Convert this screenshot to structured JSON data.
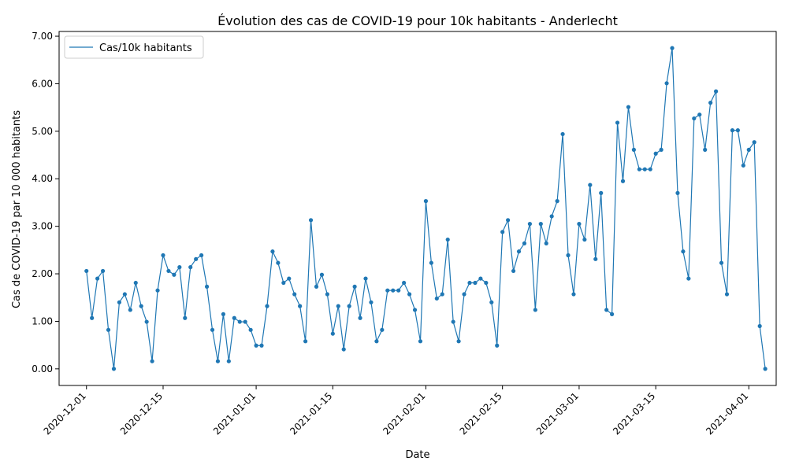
{
  "chart_data": {
    "type": "line",
    "title": "Évolution des cas de COVID-19 pour 10k habitants - Anderlecht",
    "xlabel": "Date",
    "ylabel": "Cas de COVID-19 par 10 000 habitants",
    "ylim": [
      -0.35,
      7.1
    ],
    "xlim": [
      "2020-11-26",
      "2021-04-06"
    ],
    "y_ticks": [
      0,
      1,
      2,
      3,
      4,
      5,
      6,
      7
    ],
    "y_tick_labels": [
      "0.00",
      "1.00",
      "2.00",
      "3.00",
      "4.00",
      "5.00",
      "6.00",
      "7.00"
    ],
    "x_ticks": [
      "2020-12-01",
      "2020-12-15",
      "2021-01-01",
      "2021-01-15",
      "2021-02-01",
      "2021-02-15",
      "2021-03-01",
      "2021-03-15",
      "2021-04-01"
    ],
    "grid": false,
    "legend_position": "top-left",
    "color": "#1f77b4",
    "marker": "circle",
    "series": [
      {
        "name": "Cas/10k habitants",
        "start_date": "2020-12-01",
        "values": [
          2.06,
          1.07,
          1.9,
          2.06,
          0.82,
          0.0,
          1.4,
          1.57,
          1.24,
          1.81,
          1.32,
          0.99,
          0.16,
          1.65,
          2.39,
          2.06,
          1.98,
          2.14,
          1.07,
          2.14,
          2.31,
          2.39,
          1.73,
          0.82,
          0.16,
          1.15,
          0.16,
          1.07,
          0.99,
          0.99,
          0.82,
          0.49,
          0.49,
          1.32,
          2.47,
          2.23,
          1.81,
          1.9,
          1.57,
          1.32,
          0.58,
          3.13,
          1.73,
          1.98,
          1.57,
          0.74,
          1.32,
          0.41,
          1.32,
          1.73,
          1.07,
          1.9,
          1.4,
          0.58,
          0.82,
          1.65,
          1.65,
          1.65,
          1.81,
          1.57,
          1.24,
          0.58,
          3.53,
          2.23,
          1.48,
          1.57,
          2.72,
          0.99,
          0.58,
          1.57,
          1.81,
          1.81,
          1.9,
          1.81,
          1.4,
          0.49,
          2.88,
          3.13,
          2.06,
          2.47,
          2.64,
          3.05,
          1.24,
          3.05,
          2.64,
          3.21,
          3.53,
          4.94,
          2.39,
          1.57,
          3.05,
          2.72,
          3.87,
          2.31,
          3.7,
          1.24,
          1.15,
          5.18,
          3.95,
          5.51,
          4.61,
          4.2,
          4.2,
          4.2,
          4.53,
          4.61,
          6.01,
          6.75,
          3.7,
          2.47,
          1.9,
          5.27,
          5.35,
          4.61,
          5.6,
          5.84,
          2.23,
          1.57,
          5.02,
          5.02,
          4.28,
          4.61,
          4.77,
          0.9,
          0.0
        ]
      }
    ]
  }
}
